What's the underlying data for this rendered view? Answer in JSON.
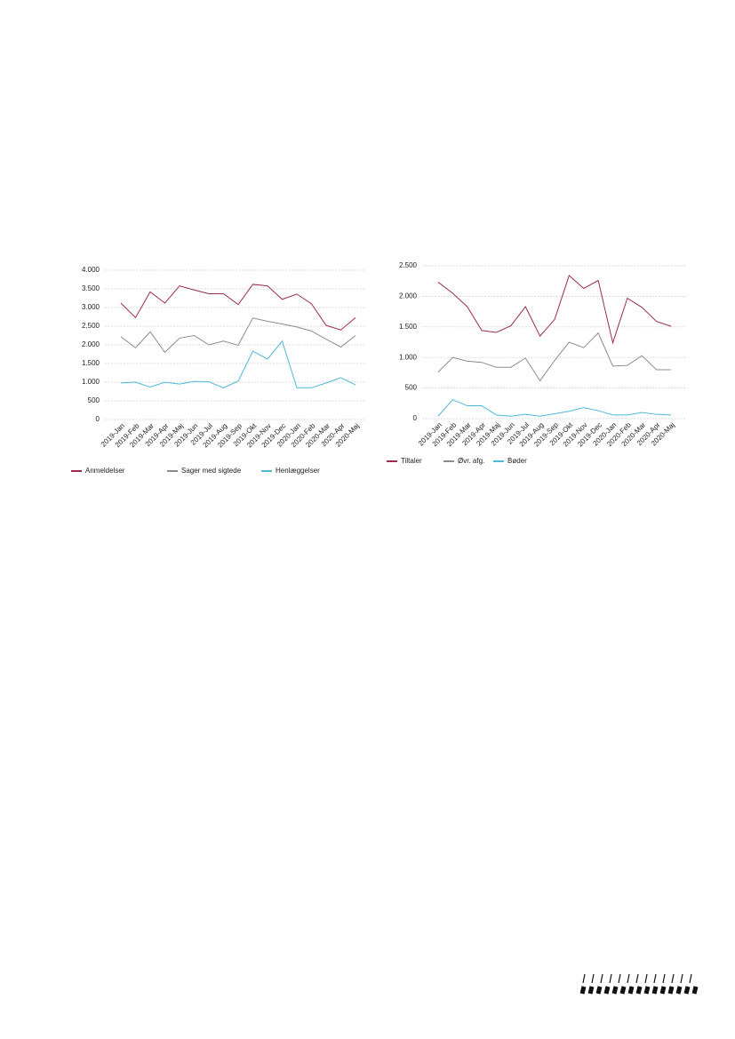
{
  "chart_data": [
    {
      "type": "line",
      "categories": [
        "2019-Jan",
        "2019-Feb",
        "2019-Mar",
        "2019-Apr",
        "2019-Maj",
        "2019-Jun",
        "2019-Jul",
        "2019-Aug",
        "2019-Sep",
        "2019-Okt",
        "2019-Nov",
        "2019-Dec",
        "2020-Jan",
        "2020-Feb",
        "2020-Mar",
        "2020-Apr",
        "2020-Maj"
      ],
      "series": [
        {
          "name": "Anmeldelser",
          "color": "#9b2b4f",
          "values": [
            3120,
            2730,
            3420,
            3120,
            3580,
            3470,
            3370,
            3370,
            3080,
            3620,
            3580,
            3220,
            3360,
            3100,
            2520,
            2400,
            2730
          ]
        },
        {
          "name": "Sager med sigtede",
          "color": "#8c8c8c",
          "values": [
            2220,
            1920,
            2350,
            1800,
            2180,
            2250,
            2000,
            2100,
            1990,
            2720,
            2630,
            2560,
            2480,
            2370,
            2150,
            1940,
            2250
          ]
        },
        {
          "name": "Henlæggelser",
          "color": "#4fb8d8",
          "values": [
            980,
            1000,
            870,
            1000,
            950,
            1020,
            1010,
            850,
            1030,
            1830,
            1620,
            2100,
            850,
            850,
            980,
            1120,
            930
          ]
        }
      ],
      "ylim": [
        0,
        4000
      ],
      "yticks": [
        0,
        500,
        {
          "value": 1000,
          "label": "1.000"
        },
        {
          "value": 1500,
          "label": "1.500"
        },
        {
          "value": 2000,
          "label": "2.000"
        },
        {
          "value": 2500,
          "label": "2.500"
        },
        {
          "value": 3000,
          "label": "3.000"
        },
        {
          "value": 3500,
          "label": "3.500"
        },
        {
          "value": 4000,
          "label": "4.000"
        }
      ],
      "grid": true,
      "legend": "bottom"
    },
    {
      "type": "line",
      "categories": [
        "2019-Jan",
        "2019-Feb",
        "2019-Mar",
        "2019-Apr",
        "2019-Maj",
        "2019-Jun",
        "2019-Jul",
        "2019-Aug",
        "2019-Sep",
        "2019-Okt",
        "2019-Nov",
        "2019-Dec",
        "2020-Jan",
        "2020-Feb",
        "2020-Mar",
        "2020-Apr",
        "2020-Maj"
      ],
      "series": [
        {
          "name": "Tiltaler",
          "color": "#9b2b4f",
          "values": [
            2230,
            2050,
            1830,
            1440,
            1410,
            1520,
            1830,
            1350,
            1620,
            2340,
            2130,
            2260,
            1240,
            1970,
            1820,
            1590,
            1510
          ]
        },
        {
          "name": "Øvr. afg.",
          "color": "#8c8c8c",
          "values": [
            760,
            1000,
            940,
            920,
            840,
            840,
            990,
            620,
            950,
            1250,
            1160,
            1400,
            860,
            870,
            1030,
            800,
            800
          ]
        },
        {
          "name": "Bøder",
          "color": "#4fb8d8",
          "values": [
            40,
            310,
            210,
            210,
            60,
            40,
            70,
            40,
            80,
            120,
            180,
            130,
            60,
            60,
            100,
            70,
            60
          ]
        }
      ],
      "ylim": [
        0,
        2500
      ],
      "yticks": [
        0,
        500,
        {
          "value": 1000,
          "label": "1.000"
        },
        {
          "value": 1500,
          "label": "1.500"
        },
        {
          "value": 2000,
          "label": "2.000"
        },
        {
          "value": 2500,
          "label": "2.500"
        }
      ],
      "grid": true,
      "legend": "bottom"
    }
  ]
}
